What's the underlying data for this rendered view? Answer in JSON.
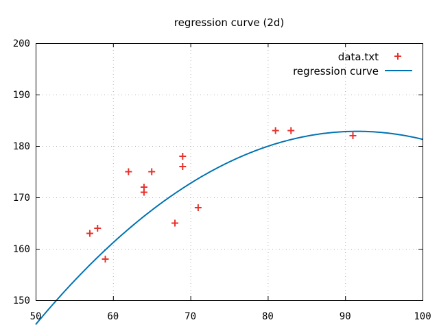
{
  "chart_data": {
    "type": "scatter",
    "title": "regression curve (2d)",
    "xlabel": "",
    "ylabel": "",
    "xlim": [
      50,
      100
    ],
    "ylim": [
      150,
      200
    ],
    "x_ticks": [
      50,
      60,
      70,
      80,
      90,
      100
    ],
    "y_ticks": [
      150,
      160,
      170,
      180,
      190,
      200
    ],
    "grid": true,
    "legend_position": "top-right",
    "series": [
      {
        "name": "data.txt",
        "kind": "points",
        "marker": "plus",
        "color": "#e8312b",
        "points": [
          [
            57,
            163
          ],
          [
            58,
            164
          ],
          [
            59,
            158
          ],
          [
            62,
            175
          ],
          [
            64,
            172
          ],
          [
            64,
            171
          ],
          [
            65,
            175
          ],
          [
            68,
            165
          ],
          [
            69,
            178
          ],
          [
            69,
            176
          ],
          [
            71,
            168
          ],
          [
            81,
            183
          ],
          [
            83,
            183
          ],
          [
            91,
            182
          ]
        ]
      },
      {
        "name": "regression curve",
        "kind": "line",
        "color": "#0072b2",
        "quadratic": [
          -0.02175,
          3.983,
          0.5
        ]
      }
    ]
  }
}
